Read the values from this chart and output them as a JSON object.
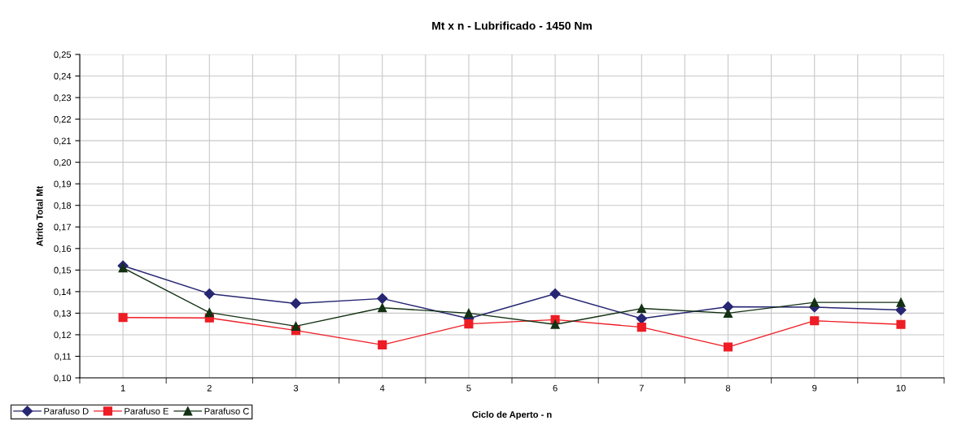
{
  "chart_data": {
    "type": "line",
    "title": "Mt x n - Lubrificado - 1450 Nm",
    "xlabel": "Ciclo de Aperto - n",
    "ylabel": "Atrito Total Mt",
    "categories": [
      "1",
      "2",
      "3",
      "4",
      "5",
      "6",
      "7",
      "8",
      "9",
      "10"
    ],
    "series": [
      {
        "name": "Parafuso D",
        "color": "#262673",
        "marker": "diamond",
        "values": [
          0.152,
          0.139,
          0.1345,
          0.1368,
          0.1275,
          0.139,
          0.1275,
          0.133,
          0.1328,
          0.1315
        ]
      },
      {
        "name": "Parafuso E",
        "color": "#ee1c24",
        "marker": "square",
        "values": [
          0.128,
          0.1278,
          0.122,
          0.1153,
          0.125,
          0.127,
          0.1235,
          0.1143,
          0.1265,
          0.1248
        ]
      },
      {
        "name": "Parafuso C",
        "color": "#133113",
        "marker": "triangle",
        "values": [
          0.151,
          0.1303,
          0.124,
          0.1325,
          0.13,
          0.1248,
          0.1322,
          0.13,
          0.135,
          0.135
        ]
      }
    ],
    "ylim": [
      0.1,
      0.25
    ],
    "yticks": [
      {
        "value": 0.1,
        "label": "0,10"
      },
      {
        "value": 0.11,
        "label": "0,11"
      },
      {
        "value": 0.12,
        "label": "0,12"
      },
      {
        "value": 0.13,
        "label": "0,13"
      },
      {
        "value": 0.14,
        "label": "0,14"
      },
      {
        "value": 0.15,
        "label": "0,15"
      },
      {
        "value": 0.16,
        "label": "0,16"
      },
      {
        "value": 0.17,
        "label": "0,17"
      },
      {
        "value": 0.18,
        "label": "0,18"
      },
      {
        "value": 0.19,
        "label": "0,19"
      },
      {
        "value": 0.2,
        "label": "0,20"
      },
      {
        "value": 0.21,
        "label": "0,21"
      },
      {
        "value": 0.22,
        "label": "0,22"
      },
      {
        "value": 0.23,
        "label": "0,23"
      },
      {
        "value": 0.24,
        "label": "0,24"
      },
      {
        "value": 0.25,
        "label": "0,25"
      }
    ],
    "grid": true,
    "legend": "bottom left",
    "line_style": "solid"
  }
}
